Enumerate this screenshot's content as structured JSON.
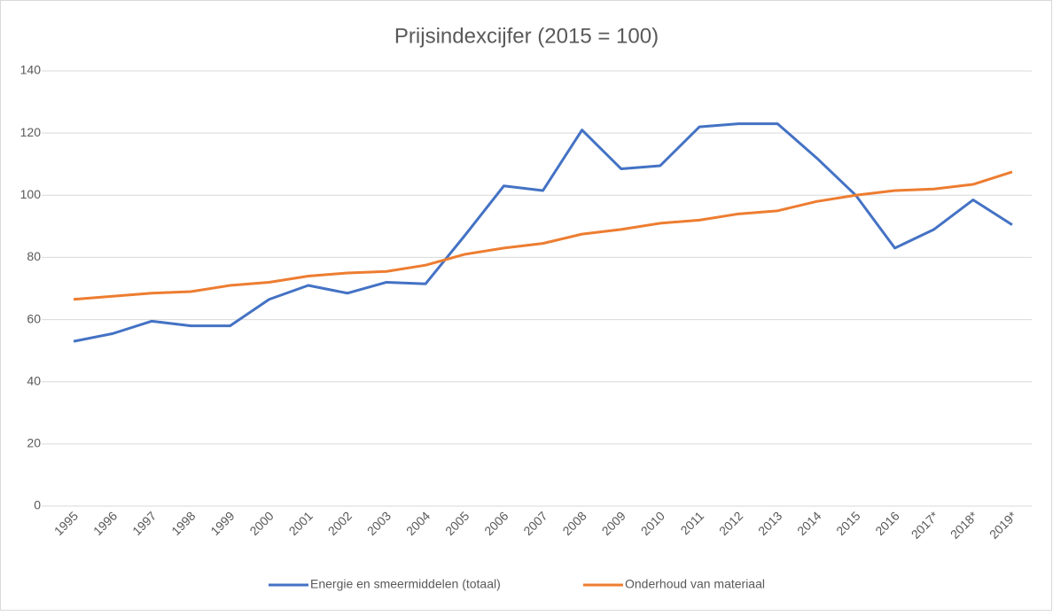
{
  "chart_data": {
    "type": "line",
    "title": "Prijsindexcijfer (2015 = 100)",
    "categories": [
      "1995",
      "1996",
      "1997",
      "1998",
      "1999",
      "2000",
      "2001",
      "2002",
      "2003",
      "2004",
      "2005",
      "2006",
      "2007",
      "2008",
      "2009",
      "2010",
      "2011",
      "2012",
      "2013",
      "2014",
      "2015",
      "2016",
      "2017*",
      "2018*",
      "2019*"
    ],
    "series": [
      {
        "name": "Energie en smeermiddelen (totaal)",
        "color": "#4472c4",
        "values": [
          53,
          55.5,
          59.5,
          58,
          58,
          66.5,
          71,
          68.5,
          72,
          71.5,
          87,
          103,
          101.5,
          121,
          108.5,
          109.5,
          122,
          123,
          123,
          112,
          100,
          83,
          89,
          98.5,
          90.5
        ]
      },
      {
        "name": "Onderhoud van materiaal",
        "color": "#ed7d31",
        "values": [
          66.5,
          67.5,
          68.5,
          69,
          71,
          72,
          74,
          75,
          75.5,
          77.5,
          81,
          83,
          84.5,
          87.5,
          89,
          91,
          92,
          94,
          95,
          98,
          100,
          101.5,
          102,
          103.5,
          107.5
        ]
      }
    ],
    "ylim": [
      0,
      140
    ],
    "yticks": [
      0,
      20,
      40,
      60,
      80,
      100,
      120,
      140
    ],
    "grid": true,
    "legend": "bottom"
  }
}
